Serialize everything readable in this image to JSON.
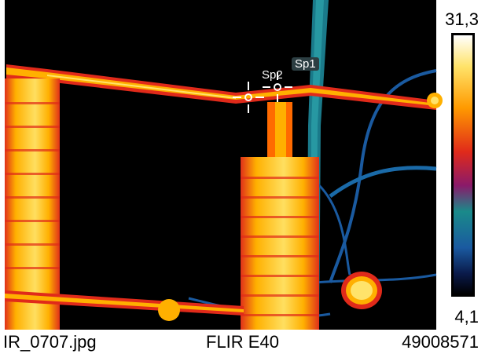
{
  "scale": {
    "max": "31,3",
    "min": "4,1",
    "colors": [
      "#ffffff",
      "#ffe36a",
      "#ffb000",
      "#ff6a00",
      "#e02a1a",
      "#9a1a6a",
      "#5a3a8a",
      "#1a8a8a",
      "#1a5aa0",
      "#0a1a4a",
      "#000000"
    ]
  },
  "spots": [
    {
      "label": "Sp1"
    },
    {
      "label": "Sp2"
    }
  ],
  "footer": {
    "filename": "IR_0707.jpg",
    "camera": "FLIR E40",
    "serial": "49008571"
  }
}
